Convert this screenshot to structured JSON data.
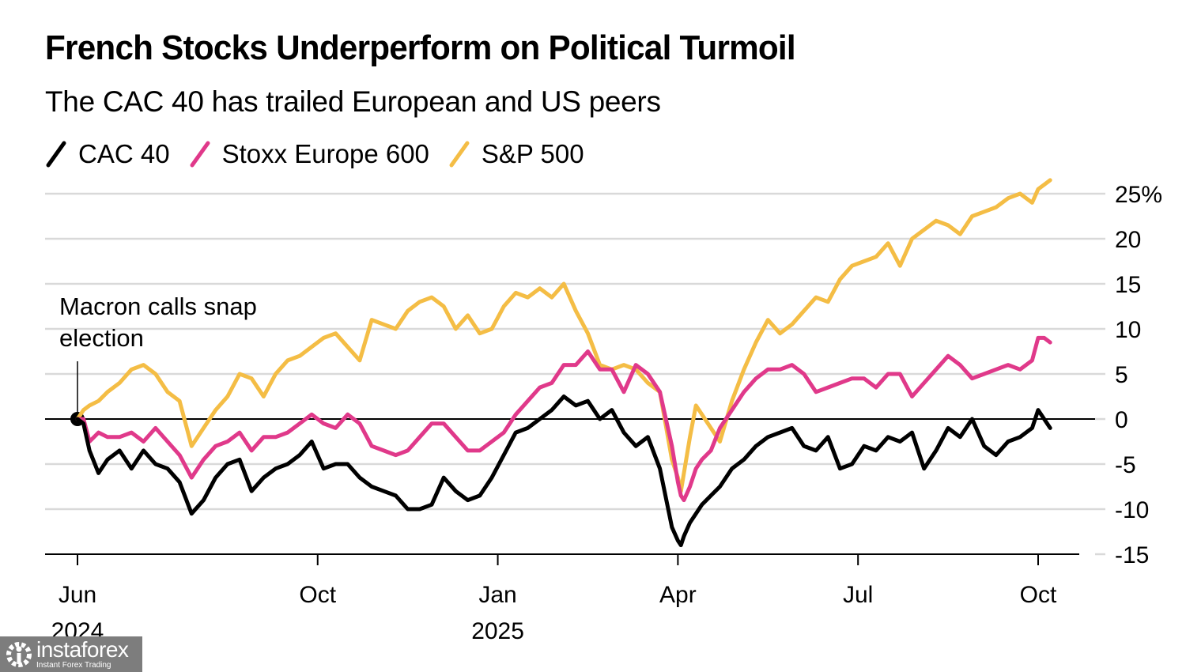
{
  "chart_data": {
    "type": "line",
    "title": "French Stocks Underperform on Political Turmoil",
    "subtitle": "The CAC 40 has trailed European and US peers",
    "xlabel": "",
    "ylabel": "",
    "ylim": [
      -15,
      25
    ],
    "y_unit": "%",
    "grid": true,
    "legend_position": "top-left",
    "x_ticks": [
      {
        "label": "Jun",
        "sublabel": "2024",
        "t": 0
      },
      {
        "label": "Oct",
        "sublabel": "",
        "t": 4
      },
      {
        "label": "Jan",
        "sublabel": "2025",
        "t": 7
      },
      {
        "label": "Apr",
        "sublabel": "",
        "t": 10
      },
      {
        "label": "Jul",
        "sublabel": "",
        "t": 13
      },
      {
        "label": "Oct",
        "sublabel": "",
        "t": 16
      }
    ],
    "x_range_months": [
      0,
      16.7
    ],
    "y_ticks": [
      {
        "value": 25,
        "label": "25%"
      },
      {
        "value": 20,
        "label": "20"
      },
      {
        "value": 15,
        "label": "15"
      },
      {
        "value": 10,
        "label": "10"
      },
      {
        "value": 5,
        "label": "5"
      },
      {
        "value": 0,
        "label": "0"
      },
      {
        "value": -5,
        "label": "-5"
      },
      {
        "value": -10,
        "label": "-10"
      },
      {
        "value": -15,
        "label": "-15"
      }
    ],
    "annotation": {
      "lines": [
        "Macron calls snap",
        "election"
      ],
      "t": 0,
      "value": 0
    },
    "x_months": [
      0.0,
      0.1,
      0.2,
      0.35,
      0.5,
      0.7,
      0.9,
      1.1,
      1.3,
      1.5,
      1.7,
      1.9,
      2.1,
      2.3,
      2.5,
      2.7,
      2.9,
      3.1,
      3.3,
      3.5,
      3.7,
      3.9,
      4.1,
      4.3,
      4.5,
      4.7,
      4.9,
      5.1,
      5.3,
      5.5,
      5.7,
      5.9,
      6.1,
      6.3,
      6.5,
      6.7,
      6.9,
      7.1,
      7.3,
      7.5,
      7.7,
      7.9,
      8.1,
      8.3,
      8.5,
      8.7,
      8.9,
      9.1,
      9.3,
      9.5,
      9.7,
      9.9,
      10.0,
      10.05,
      10.1,
      10.2,
      10.3,
      10.4,
      10.55,
      10.7,
      10.9,
      11.1,
      11.3,
      11.5,
      11.7,
      11.9,
      12.1,
      12.3,
      12.5,
      12.7,
      12.9,
      13.1,
      13.3,
      13.5,
      13.7,
      13.9,
      14.1,
      14.3,
      14.5,
      14.7,
      14.9,
      15.1,
      15.3,
      15.5,
      15.7,
      15.9,
      16.0,
      16.1,
      16.2
    ],
    "series": [
      {
        "name": "CAC 40",
        "color": "#000000",
        "values": [
          0.0,
          -0.5,
          -3.5,
          -6.0,
          -4.5,
          -3.5,
          -5.5,
          -3.5,
          -5.0,
          -5.5,
          -7.0,
          -10.5,
          -9.0,
          -6.5,
          -5.0,
          -4.5,
          -8.0,
          -6.5,
          -5.5,
          -5.0,
          -4.0,
          -2.5,
          -5.5,
          -5.0,
          -5.0,
          -6.5,
          -7.5,
          -8.0,
          -8.5,
          -10.0,
          -10.0,
          -9.5,
          -6.5,
          -8.0,
          -9.0,
          -8.5,
          -6.5,
          -4.0,
          -1.5,
          -1.0,
          0.0,
          1.0,
          2.5,
          1.5,
          2.0,
          0.0,
          1.0,
          -1.5,
          -3.0,
          -2.0,
          -5.5,
          -12.0,
          -13.5,
          -14.0,
          -13.0,
          -11.5,
          -10.5,
          -9.5,
          -8.5,
          -7.5,
          -5.5,
          -4.5,
          -3.0,
          -2.0,
          -1.5,
          -1.0,
          -3.0,
          -3.5,
          -2.0,
          -5.5,
          -5.0,
          -3.0,
          -3.5,
          -2.0,
          -2.5,
          -1.5,
          -5.5,
          -3.5,
          -1.0,
          -2.0,
          0.0,
          -3.0,
          -4.0,
          -2.5,
          -2.0,
          -1.0,
          1.0,
          0.0,
          -1.0
        ]
      },
      {
        "name": "Stoxx Europe 600",
        "color": "#e0398a",
        "values": [
          0.0,
          0.0,
          -2.5,
          -1.5,
          -2.0,
          -2.0,
          -1.5,
          -2.5,
          -1.0,
          -2.5,
          -4.0,
          -6.5,
          -4.5,
          -3.0,
          -2.5,
          -1.5,
          -3.5,
          -2.0,
          -2.0,
          -1.5,
          -0.5,
          0.5,
          -0.5,
          -1.0,
          0.5,
          -0.5,
          -3.0,
          -3.5,
          -4.0,
          -3.5,
          -2.0,
          -0.5,
          -0.5,
          -2.0,
          -3.5,
          -3.5,
          -2.5,
          -1.5,
          0.5,
          2.0,
          3.5,
          4.0,
          6.0,
          6.0,
          7.5,
          5.5,
          5.5,
          3.0,
          6.0,
          5.0,
          3.0,
          -3.0,
          -7.0,
          -8.5,
          -9.0,
          -7.5,
          -5.5,
          -4.5,
          -3.5,
          -1.0,
          1.0,
          3.0,
          4.5,
          5.5,
          5.5,
          6.0,
          5.0,
          3.0,
          3.5,
          4.0,
          4.5,
          4.5,
          3.5,
          5.0,
          5.0,
          2.5,
          4.0,
          5.5,
          7.0,
          6.0,
          4.5,
          5.0,
          5.5,
          6.0,
          5.5,
          6.5,
          9.0,
          9.0,
          8.5
        ]
      },
      {
        "name": "S&P 500",
        "color": "#f4bd45",
        "values": [
          0.0,
          1.0,
          1.5,
          2.0,
          3.0,
          4.0,
          5.5,
          6.0,
          5.0,
          3.0,
          2.0,
          -3.0,
          -1.0,
          1.0,
          2.5,
          5.0,
          4.5,
          2.5,
          5.0,
          6.5,
          7.0,
          8.0,
          9.0,
          9.5,
          8.0,
          6.5,
          11.0,
          10.5,
          10.0,
          12.0,
          13.0,
          13.5,
          12.5,
          10.0,
          11.5,
          9.5,
          10.0,
          12.5,
          14.0,
          13.5,
          14.5,
          13.5,
          15.0,
          12.0,
          9.5,
          6.0,
          5.5,
          6.0,
          5.5,
          4.0,
          3.0,
          -4.5,
          -6.5,
          -8.0,
          -6.0,
          -2.0,
          1.5,
          0.5,
          -1.0,
          -2.5,
          2.0,
          5.5,
          8.5,
          11.0,
          9.5,
          10.5,
          12.0,
          13.5,
          13.0,
          15.5,
          17.0,
          17.5,
          18.0,
          19.5,
          17.0,
          20.0,
          21.0,
          22.0,
          21.5,
          20.5,
          22.5,
          23.0,
          23.5,
          24.5,
          25.0,
          24.0,
          25.5,
          26.0,
          26.5
        ]
      }
    ],
    "series_gaps_after_index": {
      "S&P 500": [],
      "CAC 40": [],
      "Stoxx Europe 600": []
    }
  },
  "watermark": {
    "brand": "instaforex",
    "tagline": "Instant Forex Trading",
    "icon": "gear-person-icon"
  }
}
